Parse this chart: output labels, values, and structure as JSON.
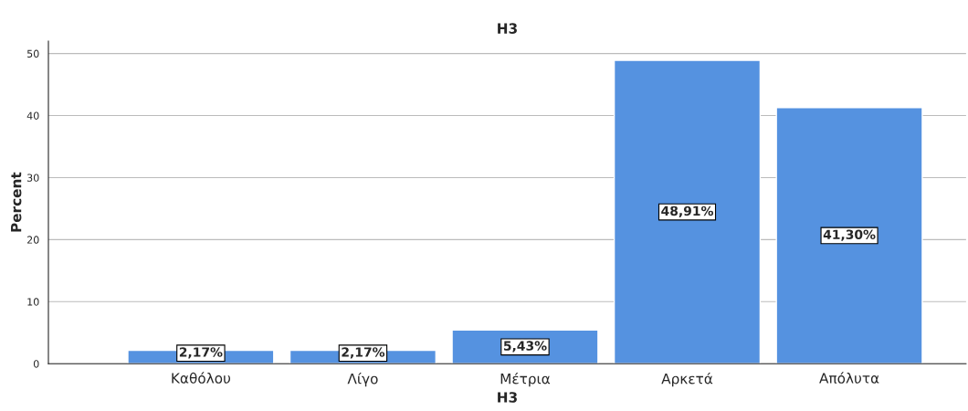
{
  "chart_data": {
    "type": "bar",
    "title": "H3",
    "xlabel": "H3",
    "ylabel": "Percent",
    "categories": [
      "Καθόλου",
      "Λίγο",
      "Μέτρια",
      "Αρκετά",
      "Απόλυτα"
    ],
    "values": [
      2.17,
      2.17,
      5.43,
      48.91,
      41.3
    ],
    "value_labels": [
      "2,17%",
      "2,17%",
      "5,43%",
      "48,91%",
      "41,30%"
    ],
    "color": "#5592e0",
    "ylim": [
      0,
      52
    ],
    "yticks": [
      0,
      10,
      20,
      30,
      40,
      50
    ],
    "grid": "y"
  }
}
